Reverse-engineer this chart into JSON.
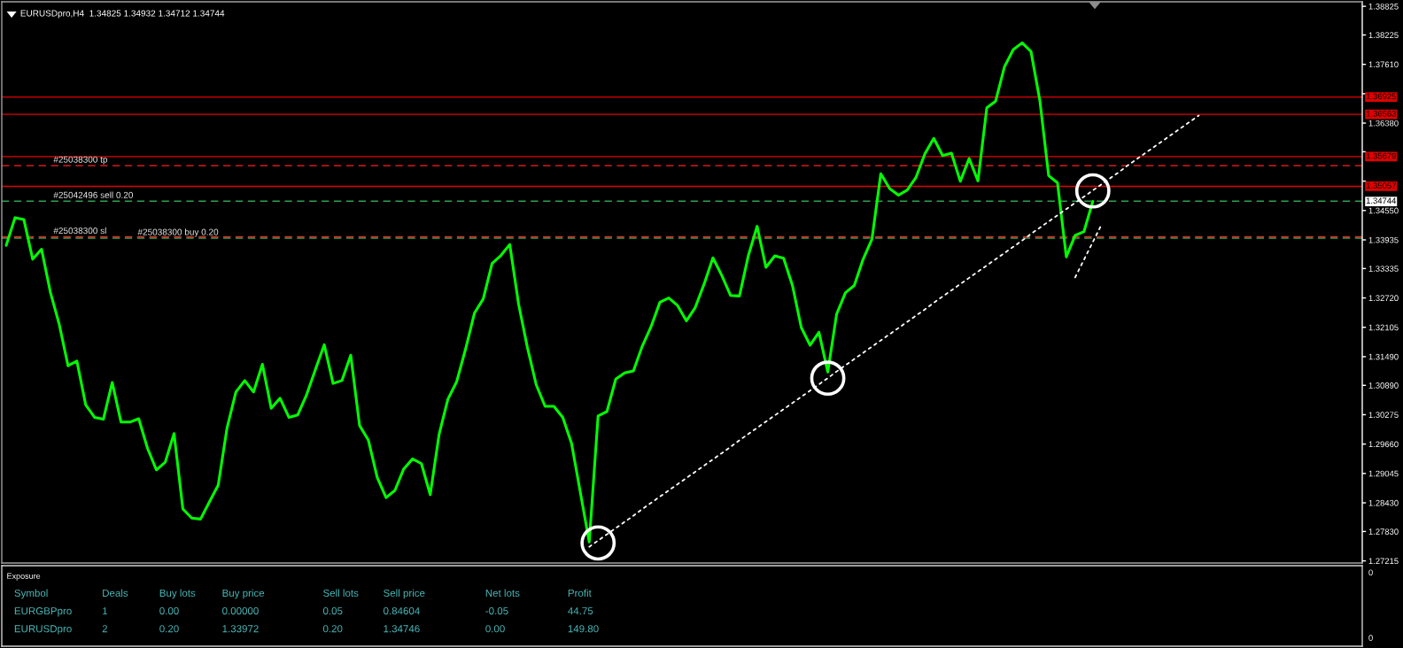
{
  "chart_data": [
    {
      "type": "line",
      "title": "EURUSDpro,H4  1.34825 1.34932 1.34712 1.34744",
      "categories": [
        null,
        null,
        null,
        null,
        null,
        null,
        null,
        null,
        null,
        null,
        null,
        null,
        null,
        null,
        null,
        null,
        null,
        null,
        null,
        null,
        null,
        null,
        null,
        null,
        null,
        null,
        null,
        null,
        null,
        null,
        null,
        null,
        null,
        null,
        null,
        null,
        null,
        null,
        null,
        null,
        null,
        null,
        null,
        null,
        null,
        null,
        null,
        null,
        null,
        null,
        null,
        null,
        null,
        null,
        null,
        null,
        null,
        null,
        null,
        null,
        null,
        null,
        null,
        null,
        null,
        null,
        null,
        null,
        null,
        null,
        null,
        null,
        null,
        null,
        null,
        null,
        null,
        null,
        null,
        null,
        null,
        null,
        null,
        null,
        null,
        null,
        null,
        null,
        null,
        null,
        null,
        null,
        null,
        null,
        null,
        null,
        null,
        null,
        null,
        null,
        null,
        null,
        null,
        null,
        null,
        null,
        null,
        null,
        null,
        null,
        null,
        null,
        null,
        null,
        null,
        null,
        null,
        null,
        null,
        null,
        null,
        null,
        null,
        null,
        null,
        null,
        null,
        null,
        null,
        null,
        null,
        null,
        null,
        null,
        null,
        null,
        null,
        null,
        null,
        null,
        null,
        null,
        null,
        null,
        null,
        null,
        null,
        null,
        null,
        null,
        null,
        null,
        null,
        null
      ],
      "series": [
        {
          "color": "#00ff00",
          "values": [
            1.3382,
            1.344,
            1.3436,
            1.3353,
            1.3374,
            1.3284,
            1.3217,
            1.313,
            1.314,
            1.3048,
            1.3022,
            1.3018,
            1.3095,
            1.3012,
            1.3012,
            1.3019,
            1.2957,
            1.2912,
            1.2928,
            1.2988,
            1.283,
            1.2811,
            1.2809,
            1.2845,
            1.288,
            1.3,
            1.3075,
            1.3099,
            1.3075,
            1.3133,
            1.3041,
            1.3062,
            1.3022,
            1.3027,
            1.3069,
            1.3122,
            1.3174,
            1.3093,
            1.3099,
            1.3152,
            1.3005,
            1.2974,
            1.2896,
            1.2854,
            1.2869,
            1.2914,
            1.2935,
            1.2925,
            1.286,
            1.2986,
            1.306,
            1.3097,
            1.3165,
            1.324,
            1.327,
            1.3344,
            1.3361,
            1.3384,
            1.3259,
            1.3168,
            1.309,
            1.3045,
            1.3045,
            1.3022,
            1.2967,
            1.2864,
            1.2761,
            1.3025,
            1.3034,
            1.3102,
            1.3115,
            1.3119,
            1.3171,
            1.3212,
            1.3263,
            1.3272,
            1.3256,
            1.3224,
            1.3252,
            1.3301,
            1.3356,
            1.3319,
            1.3277,
            1.3276,
            1.336,
            1.3422,
            1.3336,
            1.336,
            1.3355,
            1.3298,
            1.321,
            1.3173,
            1.32,
            1.3117,
            1.3238,
            1.3283,
            1.3298,
            1.3353,
            1.3395,
            1.3532,
            1.3501,
            1.3487,
            1.3498,
            1.3525,
            1.3574,
            1.3606,
            1.357,
            1.3575,
            1.3516,
            1.3564,
            1.3517,
            1.367,
            1.3684,
            1.3756,
            1.3792,
            1.3806,
            1.3788,
            1.3686,
            1.3528,
            1.3513,
            1.3358,
            1.3403,
            1.3411,
            1.3474,
            null,
            null,
            null,
            null,
            null,
            null,
            null,
            null,
            null,
            null,
            null,
            null,
            null,
            null,
            null,
            null,
            null,
            null,
            null,
            null,
            null,
            null,
            null,
            null,
            null,
            null,
            null,
            null,
            null,
            null
          ]
        },
        {
          "type": "line",
          "color": "#ffffff",
          "line_style": "dotted",
          "values": [
            null,
            null,
            null,
            null,
            null,
            null,
            null,
            null,
            null,
            null,
            null,
            null,
            null,
            null,
            null,
            null,
            null,
            null,
            null,
            null,
            null,
            null,
            null,
            null,
            null,
            null,
            null,
            null,
            null,
            null,
            null,
            null,
            null,
            null,
            null,
            null,
            null,
            null,
            null,
            null,
            null,
            null,
            null,
            null,
            null,
            null,
            null,
            null,
            null,
            null,
            null,
            null,
            null,
            null,
            null,
            null,
            null,
            null,
            null,
            null,
            null,
            null,
            null,
            null,
            null,
            null,
            1.2751,
            1.2764,
            1.2777,
            1.279,
            1.2803,
            1.2816,
            1.283,
            1.2843,
            1.2856,
            1.2869,
            1.2882,
            1.2895,
            1.2908,
            1.2921,
            1.2934,
            1.2947,
            1.296,
            1.2974,
            1.2987,
            1.3,
            1.3013,
            1.3026,
            1.3039,
            1.3052,
            1.3065,
            1.3078,
            1.3091,
            1.3104,
            1.3118,
            1.3131,
            1.3144,
            1.3157,
            1.317,
            1.3183,
            1.3196,
            1.3209,
            1.3222,
            1.3235,
            1.3248,
            1.3262,
            1.3275,
            1.3288,
            1.3301,
            1.3314,
            1.3327,
            1.334,
            1.3353,
            1.3366,
            1.3379,
            1.3392,
            1.3406,
            1.3419,
            1.3432,
            1.3445,
            1.3458,
            1.3471,
            1.3484,
            1.3497,
            1.351,
            1.3523,
            1.3536,
            1.355,
            1.3563,
            1.3576,
            1.3589,
            1.3602,
            1.3615,
            1.3628,
            1.3641,
            1.3654,
            null,
            null,
            null,
            null,
            null,
            null,
            null,
            null,
            null,
            null,
            null,
            null,
            null,
            null,
            null,
            null,
            null,
            null
          ]
        },
        {
          "type": "line",
          "color": "#ffffff",
          "line_style": "dotted",
          "values": [
            null,
            null,
            null,
            null,
            null,
            null,
            null,
            null,
            null,
            null,
            null,
            null,
            null,
            null,
            null,
            null,
            null,
            null,
            null,
            null,
            null,
            null,
            null,
            null,
            null,
            null,
            null,
            null,
            null,
            null,
            null,
            null,
            null,
            null,
            null,
            null,
            null,
            null,
            null,
            null,
            null,
            null,
            null,
            null,
            null,
            null,
            null,
            null,
            null,
            null,
            null,
            null,
            null,
            null,
            null,
            null,
            null,
            null,
            null,
            null,
            null,
            null,
            null,
            null,
            null,
            null,
            null,
            null,
            null,
            null,
            null,
            null,
            null,
            null,
            null,
            null,
            null,
            null,
            null,
            null,
            null,
            null,
            null,
            null,
            null,
            null,
            null,
            null,
            null,
            null,
            null,
            null,
            null,
            null,
            null,
            null,
            null,
            null,
            null,
            null,
            null,
            null,
            null,
            null,
            null,
            null,
            null,
            null,
            null,
            null,
            null,
            null,
            null,
            null,
            null,
            null,
            null,
            null,
            null,
            null,
            null,
            1.3315,
            1.3352,
            1.3389,
            1.3426,
            null,
            null,
            null,
            null,
            null,
            null,
            null,
            null,
            null,
            null,
            null,
            null,
            null,
            null,
            null,
            null,
            null,
            null,
            null,
            null,
            null,
            null,
            null,
            null,
            null,
            null,
            null,
            null,
            null
          ]
        },
        {
          "type": "scatter",
          "color": "#ffffff",
          "values": [
            null,
            null,
            null,
            null,
            null,
            null,
            null,
            null,
            null,
            null,
            null,
            null,
            null,
            null,
            null,
            null,
            null,
            null,
            null,
            null,
            null,
            null,
            null,
            null,
            null,
            null,
            null,
            null,
            null,
            null,
            null,
            null,
            null,
            null,
            null,
            null,
            null,
            null,
            null,
            null,
            null,
            null,
            null,
            null,
            null,
            null,
            null,
            null,
            null,
            null,
            null,
            null,
            null,
            null,
            null,
            null,
            null,
            null,
            null,
            null,
            null,
            null,
            null,
            null,
            null,
            null,
            null,
            1.2759,
            null,
            null,
            null,
            null,
            null,
            null,
            null,
            null,
            null,
            null,
            null,
            null,
            null,
            null,
            null,
            null,
            null,
            null,
            null,
            null,
            null,
            null,
            null,
            null,
            null,
            1.3104,
            null,
            null,
            null,
            null,
            null,
            null,
            null,
            null,
            null,
            null,
            null,
            null,
            null,
            null,
            null,
            null,
            null,
            null,
            null,
            null,
            null,
            null,
            null,
            null,
            null,
            null,
            null,
            null,
            null,
            1.3496,
            null,
            null,
            null,
            null,
            null,
            null,
            null,
            null,
            null,
            null,
            null,
            null,
            null,
            null,
            null,
            null,
            null,
            null,
            null,
            null,
            null,
            null,
            null,
            null,
            null,
            null,
            null,
            null,
            null,
            null
          ]
        }
      ],
      "ylim": [
        1.2717,
        1.3892
      ],
      "yticks": [
        1.38825,
        1.38225,
        {
          "value": 1.3761,
          "label": "1.37610"
        },
        {
          "value": 1.36995,
          "label": null
        },
        {
          "value": 1.3638,
          "label": "1.36380"
        },
        {
          "value": 1.3578,
          "label": null
        },
        {
          "value": 1.35165,
          "label": null
        },
        {
          "value": 1.3455,
          "label": "1.34550"
        },
        1.33935,
        1.33335,
        {
          "value": 1.3272,
          "label": "1.32720"
        },
        1.32105,
        {
          "value": 1.3149,
          "label": "1.31490"
        },
        {
          "value": 1.3089,
          "label": "1.30890"
        },
        1.30275,
        {
          "value": 1.2966,
          "label": "1.29660"
        },
        1.29045,
        {
          "value": 1.2843,
          "label": "1.28430"
        },
        {
          "value": 1.2783,
          "label": "1.27830"
        },
        1.27215
      ],
      "tick_labels": "y",
      "ref_lines": [
        {
          "axis": "y",
          "value": 1.36925,
          "label": "1.36925",
          "color": "#e00000",
          "line_style": "solid"
        },
        {
          "axis": "y",
          "value": 1.36563,
          "label": "1.36563",
          "color": "#e00000",
          "line_style": "solid"
        },
        {
          "axis": "y",
          "value": 1.35679,
          "label": "1.35679",
          "color": "#e00000",
          "line_style": "solid"
        },
        {
          "axis": "y",
          "value": 1.3549,
          "label": "#25038300 tp",
          "color": "#ff2020",
          "line_style": "dashed"
        },
        {
          "axis": "y",
          "value": 1.35057,
          "label": "1.35057",
          "color": "#e00000",
          "line_style": "solid"
        },
        {
          "axis": "y",
          "value": 1.34746,
          "label": "#25042496 sell 0.20",
          "color": "#2fa050",
          "line_style": "dashed"
        },
        {
          "axis": "y",
          "value": 1.34,
          "label": "#25038300 sl",
          "color": "#ff2020",
          "line_style": "dashed"
        },
        {
          "axis": "y",
          "value": 1.33972,
          "label": "#25038300 buy 0.20",
          "color": "#2fa050",
          "line_style": "dashed"
        }
      ],
      "annotations": [
        "1.34744"
      ]
    },
    {
      "type": "other",
      "title": "Exposure",
      "annotations": [
        "Symbol\tDeals\tBuy lots\tBuy price\tSell lots\tSell price\tNet lots\tProfit",
        "EURGBPpro\t1\t0.00\t0.00000\t0.05\t0.84604\t-0.05\t44.75",
        "EURUSDpro\t2\t0.20\t1.33972\t0.20\t1.34746\t0.00\t149.80",
        "0",
        "0"
      ]
    }
  ]
}
